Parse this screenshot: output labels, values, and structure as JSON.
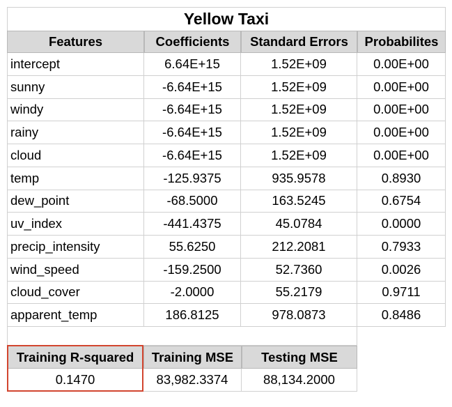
{
  "title": "Yellow Taxi",
  "headers": [
    "Features",
    "Coefficients",
    "Standard Errors",
    "Probabilites"
  ],
  "rows": [
    [
      "intercept",
      "6.64E+15",
      "1.52E+09",
      "0.00E+00"
    ],
    [
      "sunny",
      "-6.64E+15",
      "1.52E+09",
      "0.00E+00"
    ],
    [
      "windy",
      "-6.64E+15",
      "1.52E+09",
      "0.00E+00"
    ],
    [
      "rainy",
      "-6.64E+15",
      "1.52E+09",
      "0.00E+00"
    ],
    [
      "cloud",
      "-6.64E+15",
      "1.52E+09",
      "0.00E+00"
    ],
    [
      "temp",
      "-125.9375",
      "935.9578",
      "0.8930"
    ],
    [
      "dew_point",
      "-68.5000",
      "163.5245",
      "0.6754"
    ],
    [
      "uv_index",
      "-441.4375",
      "45.0784",
      "0.0000"
    ],
    [
      "precip_intensity",
      "55.6250",
      "212.2081",
      "0.7933"
    ],
    [
      "wind_speed",
      "-159.2500",
      "52.7360",
      "0.0026"
    ],
    [
      "cloud_cover",
      "-2.0000",
      "55.2179",
      "0.9711"
    ],
    [
      "apparent_temp",
      "186.8125",
      "978.0873",
      "0.8486"
    ]
  ],
  "summary": {
    "headers": [
      "Training R-squared",
      "Training MSE",
      "Testing MSE"
    ],
    "values": [
      "0.1470",
      "83,982.3374",
      "88,134.2000"
    ]
  },
  "colors": {
    "header_bg": "#d9d9d9",
    "highlight": "#d2452f",
    "grid": "#d0d0d0"
  }
}
